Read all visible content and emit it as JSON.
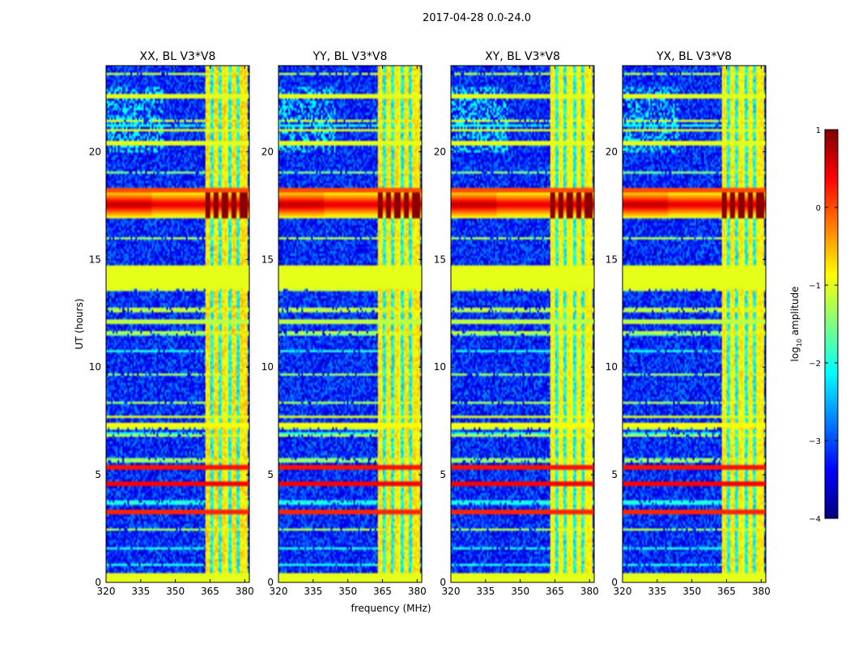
{
  "chart_data": {
    "type": "heatmap",
    "suptitle": "2017-04-28 0.0-24.0",
    "xlabel": "frequency (MHz)",
    "ylabel": "UT (hours)",
    "xlim": [
      320,
      382
    ],
    "ylim": [
      0,
      24
    ],
    "xticks": [
      320,
      335,
      350,
      365,
      380
    ],
    "yticks": [
      0,
      5,
      10,
      15,
      20
    ],
    "panels": [
      {
        "title": "XX, BL V3*V8",
        "band_intensity": 1.0
      },
      {
        "title": "YY, BL V3*V8",
        "band_intensity": 0.9
      },
      {
        "title": "XY, BL V3*V8",
        "band_intensity": 0.7
      },
      {
        "title": "YX, BL V3*V8",
        "band_intensity": 0.8
      }
    ],
    "colorbar": {
      "label": "log10 amplitude",
      "label_base": "log",
      "label_sub": "10",
      "label_rest": " amplitude",
      "range": [
        -4,
        1
      ],
      "ticks": [
        -4,
        -3,
        -2,
        -1,
        0,
        1
      ],
      "colormap": "jet",
      "colors": [
        "#00007f",
        "#0000ff",
        "#007fff",
        "#00ffff",
        "#7fff7f",
        "#ffff00",
        "#ff7f00",
        "#ff0000",
        "#7f0000"
      ]
    },
    "features": {
      "background_level": -3.2,
      "rfi_band_mhz": [
        363,
        380
      ],
      "rfi_channels_mhz": [
        364.5,
        367.5,
        371.0,
        375.0,
        378.5,
        381.0
      ],
      "rfi_gaps_mhz": [
        366.0,
        369.5,
        373.5,
        377.0
      ],
      "bright_event_ut": [
        16.9,
        18.2
      ],
      "flagged_block_ut": [
        13.6,
        14.7
      ],
      "flagged_block_level": -1.0,
      "low_flag_ut": [
        0.0,
        0.45
      ],
      "hot_rows_ut": [
        {
          "ut": 5.35,
          "level": 0.3
        },
        {
          "ut": 4.6,
          "level": 0.4
        },
        {
          "ut": 3.3,
          "level": 0.2
        },
        {
          "ut": 7.3,
          "level": -0.9
        },
        {
          "ut": 7.7,
          "level": -1.0
        },
        {
          "ut": 12.1,
          "level": -1.2
        },
        {
          "ut": 18.2,
          "level": 0.0
        },
        {
          "ut": 20.4,
          "level": -1.0
        },
        {
          "ut": 21.0,
          "level": -1.0
        },
        {
          "ut": 22.6,
          "level": -1.0
        }
      ]
    }
  }
}
